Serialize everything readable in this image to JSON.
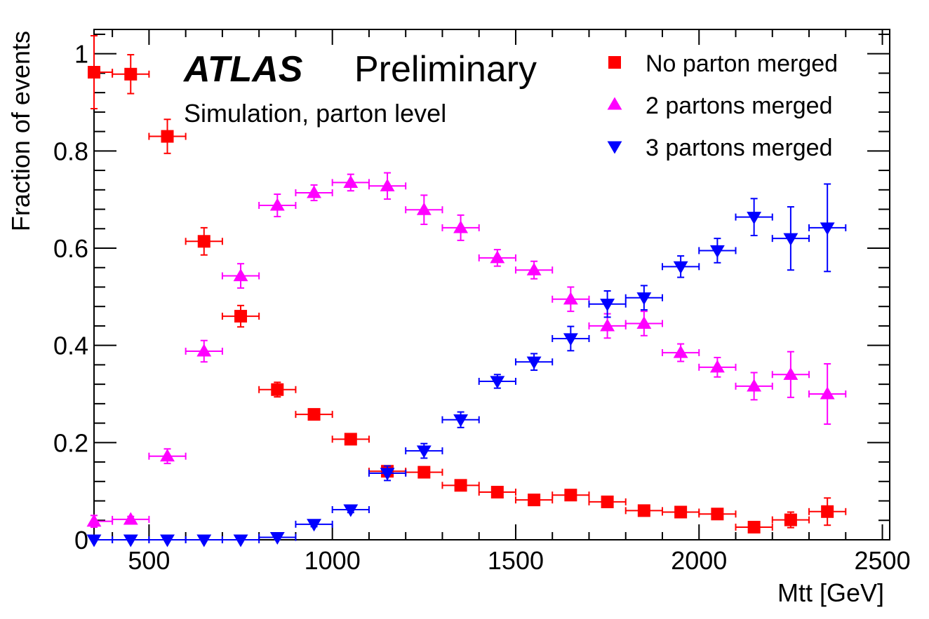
{
  "chart_data": {
    "type": "scatter",
    "title": "",
    "labels": {
      "experiment": "ATLAS",
      "status": "Preliminary",
      "annotation": "Simulation, parton level"
    },
    "xlabel": "Mtt [GeV]",
    "ylabel": "Fraction of events",
    "xlim": [
      350,
      2520
    ],
    "ylim": [
      0,
      1.05
    ],
    "x_ticks": [
      500,
      1000,
      1500,
      2000,
      2500
    ],
    "x_tick_labels": [
      "500",
      "1000",
      "1500",
      "2000",
      "2500"
    ],
    "y_ticks": [
      0,
      0.2,
      0.4,
      0.6,
      0.8,
      1
    ],
    "y_tick_labels": [
      "0",
      "0.2",
      "0.4",
      "0.6",
      "0.8",
      "1"
    ],
    "grid": false,
    "legend_position": "top-right",
    "x_bin_half_width": 50,
    "series": [
      {
        "name": "No parton merged",
        "marker": "square",
        "color": "#ff0000",
        "x": [
          350,
          450,
          550,
          650,
          750,
          850,
          950,
          1050,
          1150,
          1250,
          1350,
          1450,
          1550,
          1650,
          1750,
          1850,
          1950,
          2050,
          2150,
          2250,
          2350
        ],
        "y": [
          0.962,
          0.958,
          0.83,
          0.614,
          0.46,
          0.309,
          0.258,
          0.207,
          0.141,
          0.139,
          0.112,
          0.098,
          0.082,
          0.092,
          0.078,
          0.06,
          0.057,
          0.053,
          0.026,
          0.041,
          0.058
        ],
        "yerr": [
          0.075,
          0.04,
          0.035,
          0.028,
          0.022,
          0.015,
          0.009,
          0.007,
          0.006,
          0.006,
          0.006,
          0.005,
          0.005,
          0.006,
          0.007,
          0.007,
          0.008,
          0.009,
          0.01,
          0.016,
          0.028
        ]
      },
      {
        "name": "2 partons merged",
        "marker": "triangle-up",
        "color": "#ff00ff",
        "x": [
          350,
          450,
          550,
          650,
          750,
          850,
          950,
          1050,
          1150,
          1250,
          1350,
          1450,
          1550,
          1650,
          1750,
          1850,
          1950,
          2050,
          2150,
          2250,
          2350
        ],
        "y": [
          0.038,
          0.042,
          0.172,
          0.388,
          0.543,
          0.688,
          0.714,
          0.735,
          0.728,
          0.679,
          0.642,
          0.58,
          0.555,
          0.495,
          0.44,
          0.445,
          0.385,
          0.355,
          0.316,
          0.34,
          0.3
        ],
        "yerr": [
          0.012,
          0.006,
          0.015,
          0.022,
          0.025,
          0.023,
          0.016,
          0.017,
          0.027,
          0.03,
          0.026,
          0.017,
          0.018,
          0.025,
          0.025,
          0.025,
          0.018,
          0.02,
          0.028,
          0.047,
          0.062
        ]
      },
      {
        "name": "3 partons merged",
        "marker": "triangle-down",
        "color": "#0000ff",
        "x": [
          350,
          450,
          550,
          650,
          750,
          850,
          950,
          1050,
          1150,
          1250,
          1350,
          1450,
          1550,
          1650,
          1750,
          1850,
          1950,
          2050,
          2150,
          2250,
          2350
        ],
        "y": [
          0.0,
          0.0,
          0.0,
          0.0,
          0.0,
          0.005,
          0.032,
          0.062,
          0.137,
          0.183,
          0.247,
          0.326,
          0.366,
          0.414,
          0.485,
          0.498,
          0.562,
          0.595,
          0.664,
          0.62,
          0.642
        ],
        "yerr": [
          0.002,
          0.002,
          0.002,
          0.002,
          0.002,
          0.004,
          0.005,
          0.006,
          0.015,
          0.015,
          0.016,
          0.014,
          0.017,
          0.025,
          0.027,
          0.025,
          0.022,
          0.025,
          0.038,
          0.065,
          0.09
        ]
      }
    ]
  }
}
